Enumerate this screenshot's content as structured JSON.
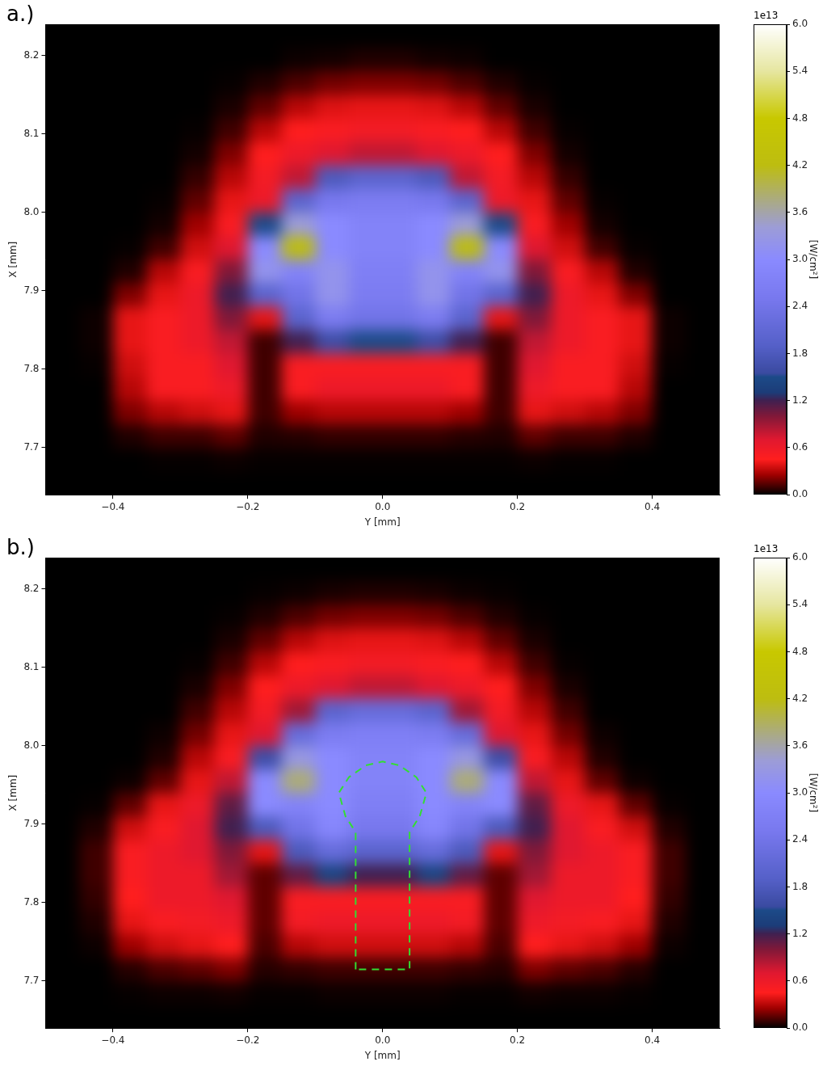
{
  "chart_data": [
    {
      "type": "heatmap",
      "title": "a.)",
      "xlabel": "Y [mm]",
      "ylabel": "X [mm]",
      "xlim": [
        -0.5,
        0.5
      ],
      "xticks": [
        {
          "value": -0.4,
          "label": "−0.4"
        },
        {
          "value": -0.2,
          "label": "−0.2"
        },
        {
          "value": 0,
          "label": "0.0"
        },
        0.2,
        0.4
      ],
      "ylim": [
        7.64,
        8.24
      ],
      "yticks": [
        7.7,
        7.8,
        7.9,
        {
          "value": 8,
          "label": "8.0"
        },
        8.1,
        8.2
      ],
      "grid": false,
      "x": [
        -0.475,
        -0.425,
        -0.375,
        -0.325,
        -0.275,
        -0.225,
        -0.175,
        -0.125,
        -0.075,
        -0.025,
        0.025,
        0.075,
        0.125,
        0.175,
        0.225,
        0.275,
        0.325,
        0.375,
        0.425,
        0.475
      ],
      "y": [
        8.225,
        8.195,
        8.165,
        8.135,
        8.105,
        8.075,
        8.045,
        8.015,
        7.985,
        7.955,
        7.925,
        7.895,
        7.865,
        7.835,
        7.805,
        7.775,
        7.745,
        7.715,
        7.685,
        7.655
      ],
      "cells": [
        [
          0,
          0,
          0,
          0,
          0,
          0,
          0,
          0,
          0,
          0,
          0,
          0,
          0,
          0,
          0,
          0,
          0,
          0,
          0,
          0
        ],
        [
          0,
          0,
          0,
          0,
          0,
          0,
          0,
          0.02,
          0.03,
          0.05,
          0.05,
          0.03,
          0.02,
          0,
          0,
          0,
          0,
          0,
          0,
          0
        ],
        [
          0,
          0,
          0,
          0,
          0,
          0.01,
          0.05,
          0.12,
          0.18,
          0.2,
          0.2,
          0.18,
          0.12,
          0.05,
          0.01,
          0,
          0,
          0,
          0,
          0
        ],
        [
          0,
          0,
          0,
          0,
          0,
          0.04,
          0.15,
          0.3,
          0.38,
          0.4,
          0.4,
          0.38,
          0.3,
          0.15,
          0.04,
          0,
          0,
          0,
          0,
          0
        ],
        [
          0,
          0,
          0,
          0,
          0.01,
          0.1,
          0.3,
          0.45,
          0.5,
          0.55,
          0.55,
          0.5,
          0.45,
          0.3,
          0.1,
          0.01,
          0,
          0,
          0,
          0
        ],
        [
          0,
          0,
          0,
          0,
          0.03,
          0.2,
          0.45,
          0.6,
          0.7,
          0.8,
          0.8,
          0.7,
          0.6,
          0.45,
          0.2,
          0.03,
          0,
          0,
          0,
          0
        ],
        [
          0,
          0,
          0,
          0,
          0.08,
          0.3,
          0.55,
          0.8,
          1.8,
          2.0,
          2.0,
          1.8,
          0.8,
          0.55,
          0.3,
          0.08,
          0,
          0,
          0,
          0
        ],
        [
          0,
          0,
          0,
          0.01,
          0.15,
          0.4,
          0.6,
          2.0,
          2.5,
          2.6,
          2.6,
          2.5,
          2.0,
          0.6,
          0.4,
          0.15,
          0.01,
          0,
          0,
          0
        ],
        [
          0,
          0,
          0,
          0.03,
          0.25,
          0.5,
          1.5,
          3.4,
          3.0,
          2.8,
          2.8,
          3.0,
          3.4,
          1.5,
          0.5,
          0.25,
          0.03,
          0,
          0,
          0
        ],
        [
          0,
          0,
          0.01,
          0.1,
          0.35,
          0.7,
          3.0,
          4.2,
          3.0,
          2.8,
          2.8,
          3.0,
          4.2,
          3.0,
          0.7,
          0.35,
          0.1,
          0.01,
          0,
          0
        ],
        [
          0,
          0,
          0.05,
          0.3,
          0.5,
          1.0,
          3.2,
          2.8,
          3.2,
          2.7,
          2.7,
          3.2,
          2.8,
          3.2,
          1.0,
          0.5,
          0.3,
          0.05,
          0,
          0
        ],
        [
          0,
          0,
          0.2,
          0.4,
          0.6,
          1.2,
          2.0,
          2.4,
          3.2,
          2.6,
          2.6,
          3.2,
          2.4,
          2.0,
          1.2,
          0.6,
          0.4,
          0.2,
          0,
          0
        ],
        [
          0,
          0.02,
          0.4,
          0.5,
          0.6,
          1.0,
          0.4,
          2.0,
          2.6,
          2.4,
          2.4,
          2.6,
          2.0,
          0.4,
          1.0,
          0.6,
          0.5,
          0.4,
          0.02,
          0
        ],
        [
          0,
          0.02,
          0.4,
          0.5,
          0.6,
          0.8,
          0.1,
          1.2,
          1.6,
          1.5,
          1.5,
          1.6,
          1.2,
          0.1,
          0.8,
          0.6,
          0.5,
          0.4,
          0.02,
          0
        ],
        [
          0,
          0.01,
          0.35,
          0.5,
          0.5,
          0.7,
          0.1,
          0.5,
          0.5,
          0.5,
          0.5,
          0.5,
          0.5,
          0.1,
          0.7,
          0.5,
          0.5,
          0.35,
          0.01,
          0
        ],
        [
          0,
          0,
          0.3,
          0.5,
          0.5,
          0.6,
          0.1,
          0.5,
          0.6,
          0.6,
          0.6,
          0.6,
          0.5,
          0.1,
          0.6,
          0.5,
          0.5,
          0.3,
          0,
          0
        ],
        [
          0,
          0,
          0.2,
          0.3,
          0.35,
          0.4,
          0.1,
          0.25,
          0.3,
          0.3,
          0.3,
          0.3,
          0.25,
          0.1,
          0.4,
          0.35,
          0.3,
          0.2,
          0,
          0
        ],
        [
          0,
          0,
          0.05,
          0.1,
          0.1,
          0.15,
          0.05,
          0.06,
          0.08,
          0.08,
          0.08,
          0.08,
          0.06,
          0.05,
          0.15,
          0.1,
          0.1,
          0.05,
          0,
          0
        ],
        [
          0,
          0,
          0,
          0.01,
          0.01,
          0.02,
          0.01,
          0.01,
          0.01,
          0.01,
          0.01,
          0.01,
          0.01,
          0.01,
          0.02,
          0.01,
          0.01,
          0,
          0,
          0
        ],
        [
          0,
          0,
          0,
          0,
          0,
          0,
          0,
          0,
          0,
          0,
          0,
          0,
          0,
          0,
          0,
          0,
          0,
          0,
          0,
          0
        ]
      ],
      "colorbar": {
        "range": [
          0,
          6
        ],
        "label": "[W/cm²]",
        "offset_label": "1e13",
        "ticks": [
          {
            "value": 0,
            "label": "0.0"
          },
          0.6,
          1.2,
          1.8,
          2.4,
          {
            "value": 3,
            "label": "3.0"
          },
          3.6,
          4.2,
          4.8,
          5.4,
          {
            "value": 6,
            "label": "6.0"
          }
        ]
      }
    },
    {
      "type": "heatmap",
      "title": "b.)",
      "xlabel": "Y [mm]",
      "ylabel": "X [mm]",
      "xlim": [
        -0.5,
        0.5
      ],
      "xticks": [
        {
          "value": -0.4,
          "label": "−0.4"
        },
        {
          "value": -0.2,
          "label": "−0.2"
        },
        {
          "value": 0,
          "label": "0.0"
        },
        0.2,
        0.4
      ],
      "ylim": [
        7.64,
        8.24
      ],
      "yticks": [
        7.7,
        7.8,
        7.9,
        {
          "value": 8,
          "label": "8.0"
        },
        8.1,
        8.2
      ],
      "grid": false,
      "x": [
        -0.475,
        -0.425,
        -0.375,
        -0.325,
        -0.275,
        -0.225,
        -0.175,
        -0.125,
        -0.075,
        -0.025,
        0.025,
        0.075,
        0.125,
        0.175,
        0.225,
        0.275,
        0.325,
        0.375,
        0.425,
        0.475
      ],
      "y": [
        8.225,
        8.195,
        8.165,
        8.135,
        8.105,
        8.075,
        8.045,
        8.015,
        7.985,
        7.955,
        7.925,
        7.895,
        7.865,
        7.835,
        7.805,
        7.775,
        7.745,
        7.715,
        7.685,
        7.655
      ],
      "cells": [
        [
          0,
          0,
          0,
          0,
          0,
          0,
          0,
          0,
          0,
          0,
          0,
          0,
          0,
          0,
          0,
          0,
          0,
          0,
          0,
          0
        ],
        [
          0,
          0,
          0,
          0,
          0,
          0,
          0.01,
          0.02,
          0.04,
          0.05,
          0.05,
          0.04,
          0.02,
          0.01,
          0,
          0,
          0,
          0,
          0,
          0
        ],
        [
          0,
          0,
          0,
          0,
          0,
          0.01,
          0.05,
          0.12,
          0.18,
          0.2,
          0.2,
          0.18,
          0.12,
          0.05,
          0.01,
          0,
          0,
          0,
          0,
          0
        ],
        [
          0,
          0,
          0,
          0,
          0,
          0.04,
          0.15,
          0.3,
          0.38,
          0.4,
          0.4,
          0.38,
          0.3,
          0.15,
          0.04,
          0,
          0,
          0,
          0,
          0
        ],
        [
          0,
          0,
          0,
          0,
          0.01,
          0.1,
          0.3,
          0.45,
          0.5,
          0.55,
          0.55,
          0.5,
          0.45,
          0.3,
          0.1,
          0.01,
          0,
          0,
          0,
          0
        ],
        [
          0,
          0,
          0,
          0,
          0.04,
          0.2,
          0.45,
          0.6,
          0.7,
          0.8,
          0.8,
          0.7,
          0.6,
          0.45,
          0.2,
          0.04,
          0,
          0,
          0,
          0
        ],
        [
          0,
          0,
          0,
          0,
          0.1,
          0.3,
          0.55,
          0.9,
          2.0,
          2.2,
          2.2,
          2.0,
          0.9,
          0.55,
          0.3,
          0.1,
          0,
          0,
          0,
          0
        ],
        [
          0,
          0,
          0,
          0.02,
          0.18,
          0.4,
          0.7,
          2.2,
          2.6,
          2.7,
          2.7,
          2.6,
          2.2,
          0.7,
          0.4,
          0.18,
          0.02,
          0,
          0,
          0
        ],
        [
          0,
          0,
          0,
          0.05,
          0.3,
          0.5,
          1.6,
          3.3,
          3.0,
          2.8,
          2.8,
          3.0,
          3.3,
          1.6,
          0.5,
          0.3,
          0.05,
          0,
          0,
          0
        ],
        [
          0,
          0,
          0.02,
          0.15,
          0.4,
          0.8,
          3.0,
          3.8,
          3.0,
          2.8,
          2.8,
          3.0,
          3.8,
          3.0,
          0.8,
          0.4,
          0.15,
          0.02,
          0,
          0
        ],
        [
          0,
          0.01,
          0.15,
          0.4,
          0.6,
          1.1,
          3.0,
          2.8,
          3.0,
          2.7,
          2.7,
          3.0,
          2.8,
          3.0,
          1.1,
          0.6,
          0.4,
          0.15,
          0.01,
          0
        ],
        [
          0,
          0.05,
          0.35,
          0.5,
          0.7,
          1.2,
          1.8,
          2.4,
          2.9,
          2.5,
          2.5,
          2.9,
          2.4,
          1.8,
          1.2,
          0.7,
          0.5,
          0.35,
          0.05,
          0
        ],
        [
          0,
          0.1,
          0.5,
          0.6,
          0.7,
          1.0,
          0.4,
          1.8,
          2.2,
          2.0,
          2.0,
          2.2,
          1.8,
          0.4,
          1.0,
          0.7,
          0.6,
          0.5,
          0.1,
          0
        ],
        [
          0,
          0.1,
          0.5,
          0.6,
          0.6,
          0.9,
          0.15,
          1.1,
          1.4,
          1.2,
          1.2,
          1.4,
          1.1,
          0.15,
          0.9,
          0.6,
          0.6,
          0.5,
          0.1,
          0
        ],
        [
          0,
          0.08,
          0.45,
          0.6,
          0.6,
          0.7,
          0.15,
          0.5,
          0.5,
          0.5,
          0.5,
          0.5,
          0.5,
          0.15,
          0.7,
          0.6,
          0.6,
          0.45,
          0.08,
          0
        ],
        [
          0,
          0.05,
          0.4,
          0.5,
          0.55,
          0.6,
          0.15,
          0.55,
          0.6,
          0.6,
          0.6,
          0.6,
          0.55,
          0.15,
          0.6,
          0.55,
          0.5,
          0.4,
          0.05,
          0
        ],
        [
          0,
          0.02,
          0.25,
          0.35,
          0.4,
          0.45,
          0.12,
          0.3,
          0.35,
          0.35,
          0.35,
          0.35,
          0.3,
          0.12,
          0.45,
          0.4,
          0.35,
          0.25,
          0.02,
          0
        ],
        [
          0,
          0,
          0.06,
          0.12,
          0.15,
          0.2,
          0.06,
          0.08,
          0.1,
          0.1,
          0.1,
          0.1,
          0.08,
          0.06,
          0.2,
          0.15,
          0.12,
          0.06,
          0,
          0
        ],
        [
          0,
          0,
          0.01,
          0.02,
          0.02,
          0.03,
          0.01,
          0.01,
          0.02,
          0.02,
          0.02,
          0.02,
          0.01,
          0.01,
          0.03,
          0.02,
          0.02,
          0.01,
          0,
          0
        ],
        [
          0,
          0,
          0,
          0,
          0,
          0,
          0,
          0,
          0,
          0,
          0,
          0,
          0,
          0,
          0,
          0,
          0,
          0,
          0,
          0
        ]
      ],
      "outline": {
        "color": "#33dd33",
        "line_style": "dashed",
        "x": [
          -0.04,
          -0.04,
          -0.055,
          -0.065,
          -0.05,
          -0.025,
          0,
          0.025,
          0.05,
          0.065,
          0.055,
          0.04,
          0.04,
          -0.04
        ],
        "y": [
          7.715,
          7.89,
          7.91,
          7.94,
          7.96,
          7.975,
          7.98,
          7.975,
          7.96,
          7.94,
          7.91,
          7.89,
          7.715,
          7.715
        ]
      },
      "colorbar": {
        "range": [
          0,
          6
        ],
        "label": "[W/cm²]",
        "offset_label": "1e13",
        "ticks": [
          {
            "value": 0,
            "label": "0.0"
          },
          0.6,
          1.2,
          1.8,
          2.4,
          {
            "value": 3,
            "label": "3.0"
          },
          3.6,
          4.2,
          4.8,
          5.4,
          {
            "value": 6,
            "label": "6.0"
          }
        ]
      }
    }
  ]
}
